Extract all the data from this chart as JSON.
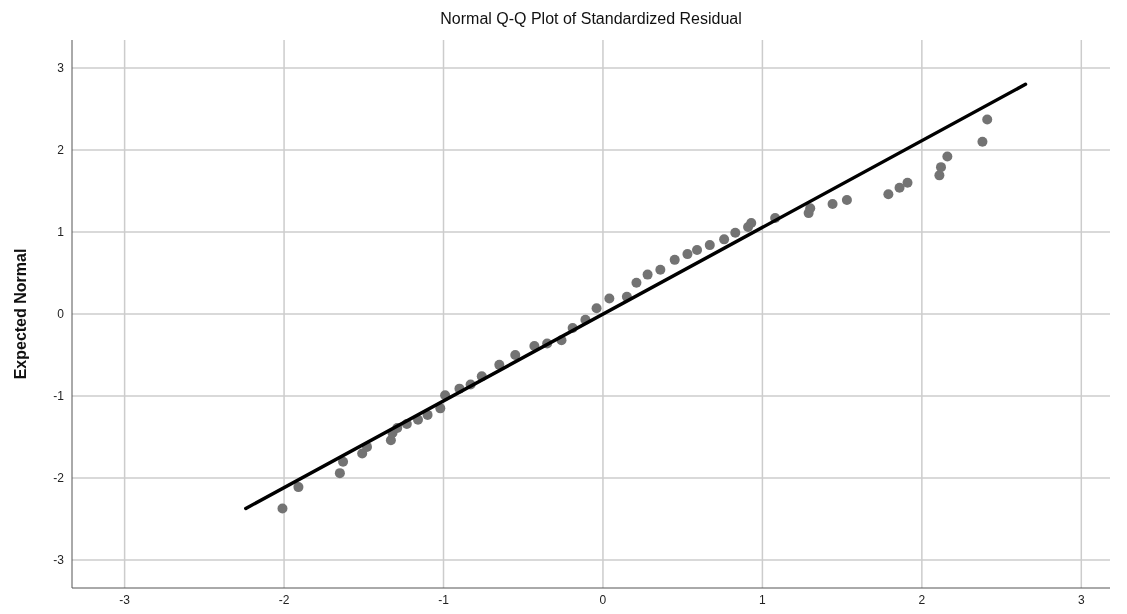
{
  "chart_data": {
    "type": "scatter",
    "title": "Normal Q-Q Plot of Standardized Residual",
    "ylabel": "Expected Normal",
    "xlim": [
      -3.33,
      3.18
    ],
    "ylim": [
      -3.34,
      3.34
    ],
    "xticks": [
      -3,
      -2,
      -1,
      0,
      1,
      2,
      3
    ],
    "yticks": [
      -3,
      -2,
      -1,
      0,
      1,
      2,
      3
    ],
    "grid": true,
    "series": [
      {
        "marker": "circle",
        "color": "#737373",
        "x": [
          -2.01,
          -1.91,
          -1.65,
          -1.63,
          -1.51,
          -1.48,
          -1.33,
          -1.32,
          -1.29,
          -1.23,
          -1.16,
          -1.1,
          -1.02,
          -0.99,
          -0.9,
          -0.83,
          -0.76,
          -0.65,
          -0.55,
          -0.43,
          -0.35,
          -0.26,
          -0.19,
          -0.11,
          -0.04,
          0.04,
          0.15,
          0.21,
          0.28,
          0.36,
          0.45,
          0.53,
          0.59,
          0.67,
          0.76,
          0.83,
          0.91,
          0.93,
          1.08,
          1.29,
          1.3,
          1.44,
          1.53,
          1.79,
          1.86,
          1.91,
          2.11,
          2.12,
          2.16,
          2.38,
          2.41
        ],
        "values": [
          -2.37,
          -2.11,
          -1.94,
          -1.8,
          -1.7,
          -1.62,
          -1.54,
          -1.45,
          -1.39,
          -1.34,
          -1.29,
          -1.23,
          -1.15,
          -0.99,
          -0.91,
          -0.86,
          -0.76,
          -0.62,
          -0.5,
          -0.39,
          -0.36,
          -0.32,
          -0.17,
          -0.07,
          0.07,
          0.19,
          0.21,
          0.38,
          0.48,
          0.54,
          0.66,
          0.73,
          0.78,
          0.84,
          0.91,
          0.99,
          1.06,
          1.11,
          1.17,
          1.23,
          1.29,
          1.34,
          1.39,
          1.46,
          1.54,
          1.6,
          1.69,
          1.79,
          1.92,
          2.1,
          2.37
        ]
      },
      {
        "type": "line",
        "marker": "none",
        "color": "#000000",
        "x": [
          -2.24,
          2.65
        ],
        "values": [
          -2.37,
          2.8
        ]
      }
    ]
  }
}
